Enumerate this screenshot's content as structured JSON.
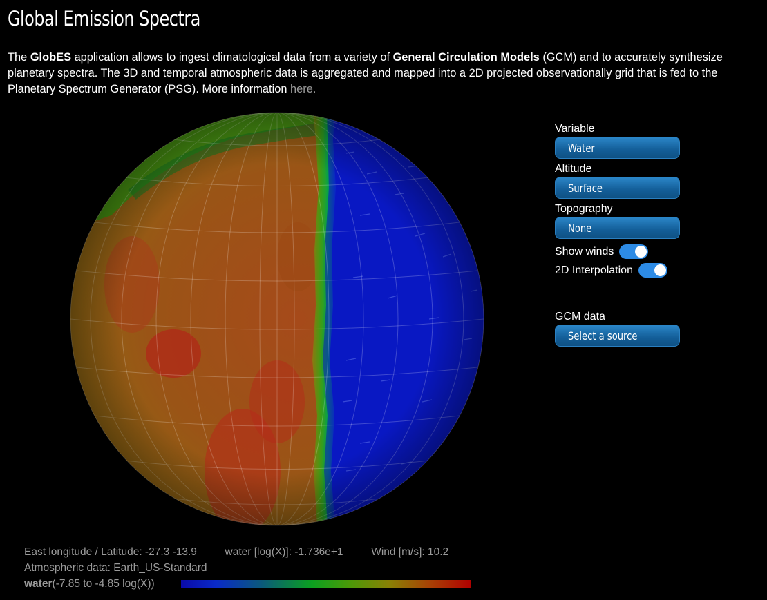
{
  "header": {
    "title": "Global Emission Spectra"
  },
  "intro": {
    "p1": "The ",
    "app": "GlobES",
    "p2": " application allows to ingest climatological data from a variety of ",
    "gcm": "General Circulation Models",
    "p3": " (GCM) and to accurately synthesize planetary spectra. The 3D and temporal atmospheric data is aggregated and mapped into a 2D projected observationally grid that is fed to the Planetary Spectrum Generator (PSG). More information ",
    "link": "here."
  },
  "controls": {
    "variable_label": "Variable",
    "variable_value": "Water",
    "altitude_label": "Altitude",
    "altitude_value": "Surface",
    "topography_label": "Topography",
    "topography_value": "None",
    "winds_label": "Show winds",
    "winds_on": true,
    "interp_label": "2D Interpolation",
    "interp_on": true,
    "gcm_label": "GCM data",
    "gcm_value": "Select a source"
  },
  "readout": {
    "lonlat": "East longitude / Latitude: -27.3 -13.9",
    "value": "water [log(X)]: -1.736e+1",
    "wind": "Wind [m/s]: 10.2",
    "atmos": "Atmospheric data: Earth_US-Standard",
    "scale_var": "water",
    "scale_range": " (-7.85 to -4.85 log(X))"
  },
  "colors": {
    "accent": "#2d8be5",
    "button": "#135e98",
    "muted": "#9a9a9a"
  }
}
